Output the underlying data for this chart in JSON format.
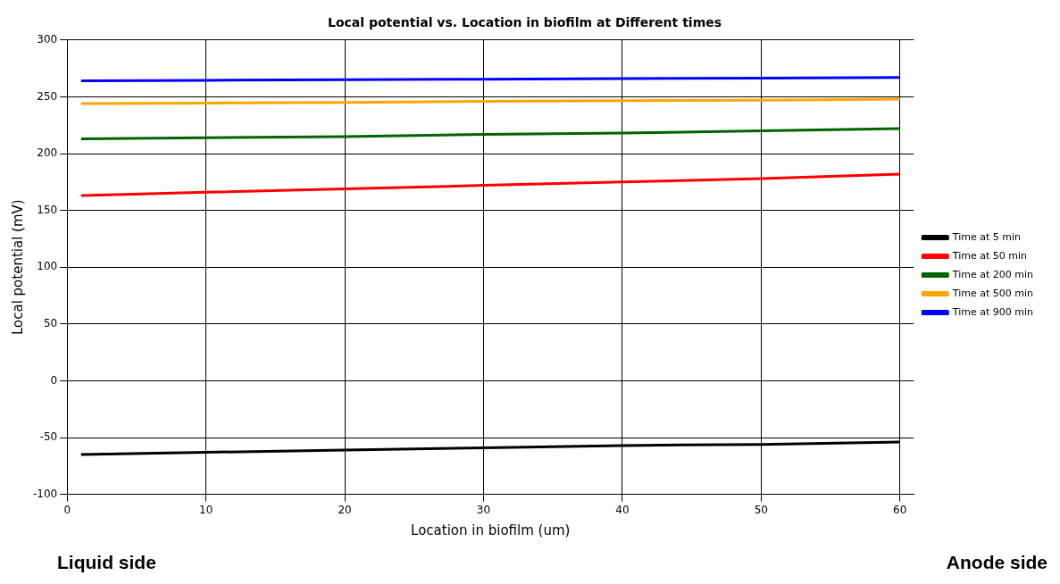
{
  "chart_data": {
    "type": "line",
    "title": "Local potential vs. Location in biofilm at Different times",
    "xlabel": "Location in biofilm (um)",
    "ylabel": "Local potential (mV)",
    "x": [
      1,
      10,
      20,
      30,
      40,
      50,
      60
    ],
    "series": [
      {
        "name": "Time at 5 min",
        "color": "#000000",
        "values": [
          -65,
          -63,
          -61,
          -59,
          -57,
          -56,
          -54
        ]
      },
      {
        "name": "Time at 50 min",
        "color": "#ff0000",
        "values": [
          163,
          166,
          169,
          172,
          175,
          178,
          182
        ]
      },
      {
        "name": "Time at 200 min",
        "color": "#006400",
        "values": [
          213,
          214,
          215,
          217,
          218,
          220,
          222
        ]
      },
      {
        "name": "Time at 500 min",
        "color": "#ffa500",
        "values": [
          244,
          244.5,
          245,
          246,
          246.5,
          247,
          248
        ]
      },
      {
        "name": "Time at 900 min",
        "color": "#0000ff",
        "values": [
          264,
          264.5,
          265,
          265.5,
          266,
          266.5,
          267
        ]
      }
    ],
    "xlim": [
      0,
      61
    ],
    "xticks": [
      0,
      10,
      20,
      30,
      40,
      50,
      60
    ],
    "ylim": [
      -100,
      300
    ],
    "yticks": [
      -100,
      -50,
      0,
      50,
      100,
      150,
      200,
      250,
      300
    ],
    "grid": true,
    "legend": "right",
    "marker": "none",
    "line_style": "solid",
    "annotations": [
      "Liquid side",
      "Anode side"
    ]
  }
}
